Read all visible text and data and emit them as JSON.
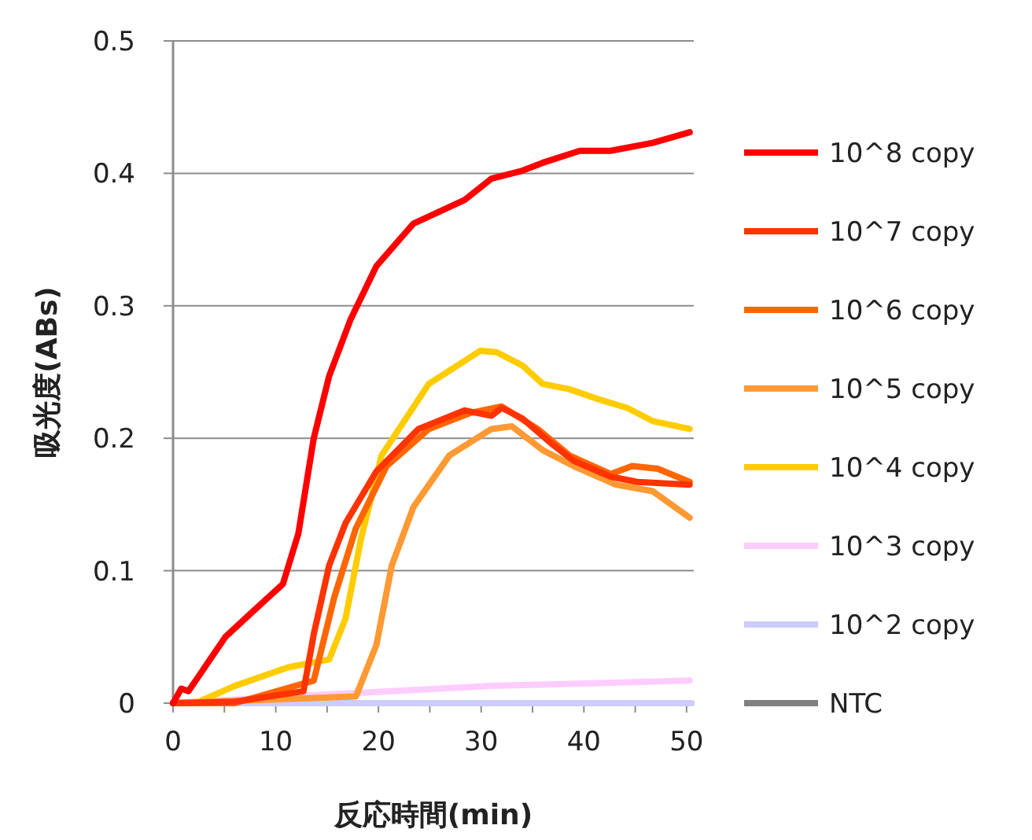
{
  "chart_data": {
    "type": "line",
    "xlabel": "反応時間(min)",
    "ylabel": "吸光度(ABs)",
    "xlim": [
      0,
      50.7
    ],
    "ylim": [
      0,
      0.5
    ],
    "xticks": [
      0,
      {
        "value": 5,
        "label": null
      },
      10,
      {
        "value": 15,
        "label": null
      },
      20,
      {
        "value": 25,
        "label": null
      },
      30,
      {
        "value": 35,
        "label": null
      },
      40,
      {
        "value": 45,
        "label": null
      },
      50
    ],
    "yticks": [
      0,
      0.1,
      0.2,
      0.3,
      0.4,
      0.5
    ],
    "grid": "y",
    "legend": "right",
    "marker": "none",
    "line_style": "solid",
    "series": [
      {
        "name": "10^8 copy",
        "color": "#ff0000",
        "x": [
          0,
          0.8,
          1.5,
          5.1,
          7.6,
          10.7,
          12.2,
          13.7,
          15.2,
          17.3,
          19.8,
          23.4,
          28.4,
          31,
          34,
          36,
          39.6,
          42.6,
          46.7,
          50.3
        ],
        "values": [
          0,
          0.011,
          0.009,
          0.05,
          0.068,
          0.09,
          0.128,
          0.2,
          0.247,
          0.29,
          0.33,
          0.362,
          0.38,
          0.396,
          0.402,
          0.408,
          0.417,
          0.417,
          0.423,
          0.431
        ]
      },
      {
        "name": "10^7 copy",
        "color": "#ff3300",
        "x": [
          0,
          6,
          12.7,
          13.7,
          15.2,
          16.8,
          19.8,
          23.9,
          28.4,
          31,
          32,
          34,
          37,
          39,
          42.6,
          45.2,
          50.3
        ],
        "values": [
          0,
          0.001,
          0.009,
          0.052,
          0.104,
          0.136,
          0.175,
          0.207,
          0.221,
          0.217,
          0.223,
          0.215,
          0.195,
          0.183,
          0.171,
          0.167,
          0.165
        ]
      },
      {
        "name": "10^6 copy",
        "color": "#ff6600",
        "x": [
          0,
          6,
          13.7,
          15.7,
          17.8,
          20.8,
          24.9,
          28.9,
          32,
          35.5,
          38.6,
          42.6,
          44.7,
          47.2,
          50.3
        ],
        "values": [
          0,
          0,
          0.017,
          0.08,
          0.132,
          0.179,
          0.207,
          0.219,
          0.224,
          0.207,
          0.187,
          0.173,
          0.179,
          0.177,
          0.167
        ]
      },
      {
        "name": "10^5 copy",
        "color": "#ff9933",
        "x": [
          0,
          17.8,
          19.8,
          21.3,
          23.4,
          26.9,
          31,
          33,
          36,
          39,
          43.1,
          46.7,
          50.3
        ],
        "values": [
          0,
          0.005,
          0.044,
          0.104,
          0.148,
          0.187,
          0.207,
          0.209,
          0.191,
          0.179,
          0.165,
          0.16,
          0.14
        ]
      },
      {
        "name": "10^4 copy",
        "color": "#ffcc00",
        "x": [
          0,
          2.5,
          6,
          11.2,
          15.2,
          16.8,
          18.3,
          20.3,
          24.9,
          29.9,
          31.5,
          34,
          36,
          38.6,
          41.6,
          44.2,
          46.7,
          50.3
        ],
        "values": [
          0,
          0.001,
          0.013,
          0.027,
          0.033,
          0.064,
          0.124,
          0.187,
          0.241,
          0.266,
          0.265,
          0.255,
          0.241,
          0.237,
          0.229,
          0.223,
          0.213,
          0.207
        ]
      },
      {
        "name": "10^3 copy",
        "color": "#ffccff",
        "x": [
          0,
          11.2,
          21.3,
          31,
          50.3
        ],
        "values": [
          0,
          0.005,
          0.009,
          0.013,
          0.017
        ]
      },
      {
        "name": "10^2 copy",
        "color": "#ccccff",
        "x": [
          0,
          50.5
        ],
        "values": [
          0,
          0
        ]
      },
      {
        "name": "NTC",
        "color": "#808080",
        "values": [
          null
        ]
      }
    ]
  }
}
